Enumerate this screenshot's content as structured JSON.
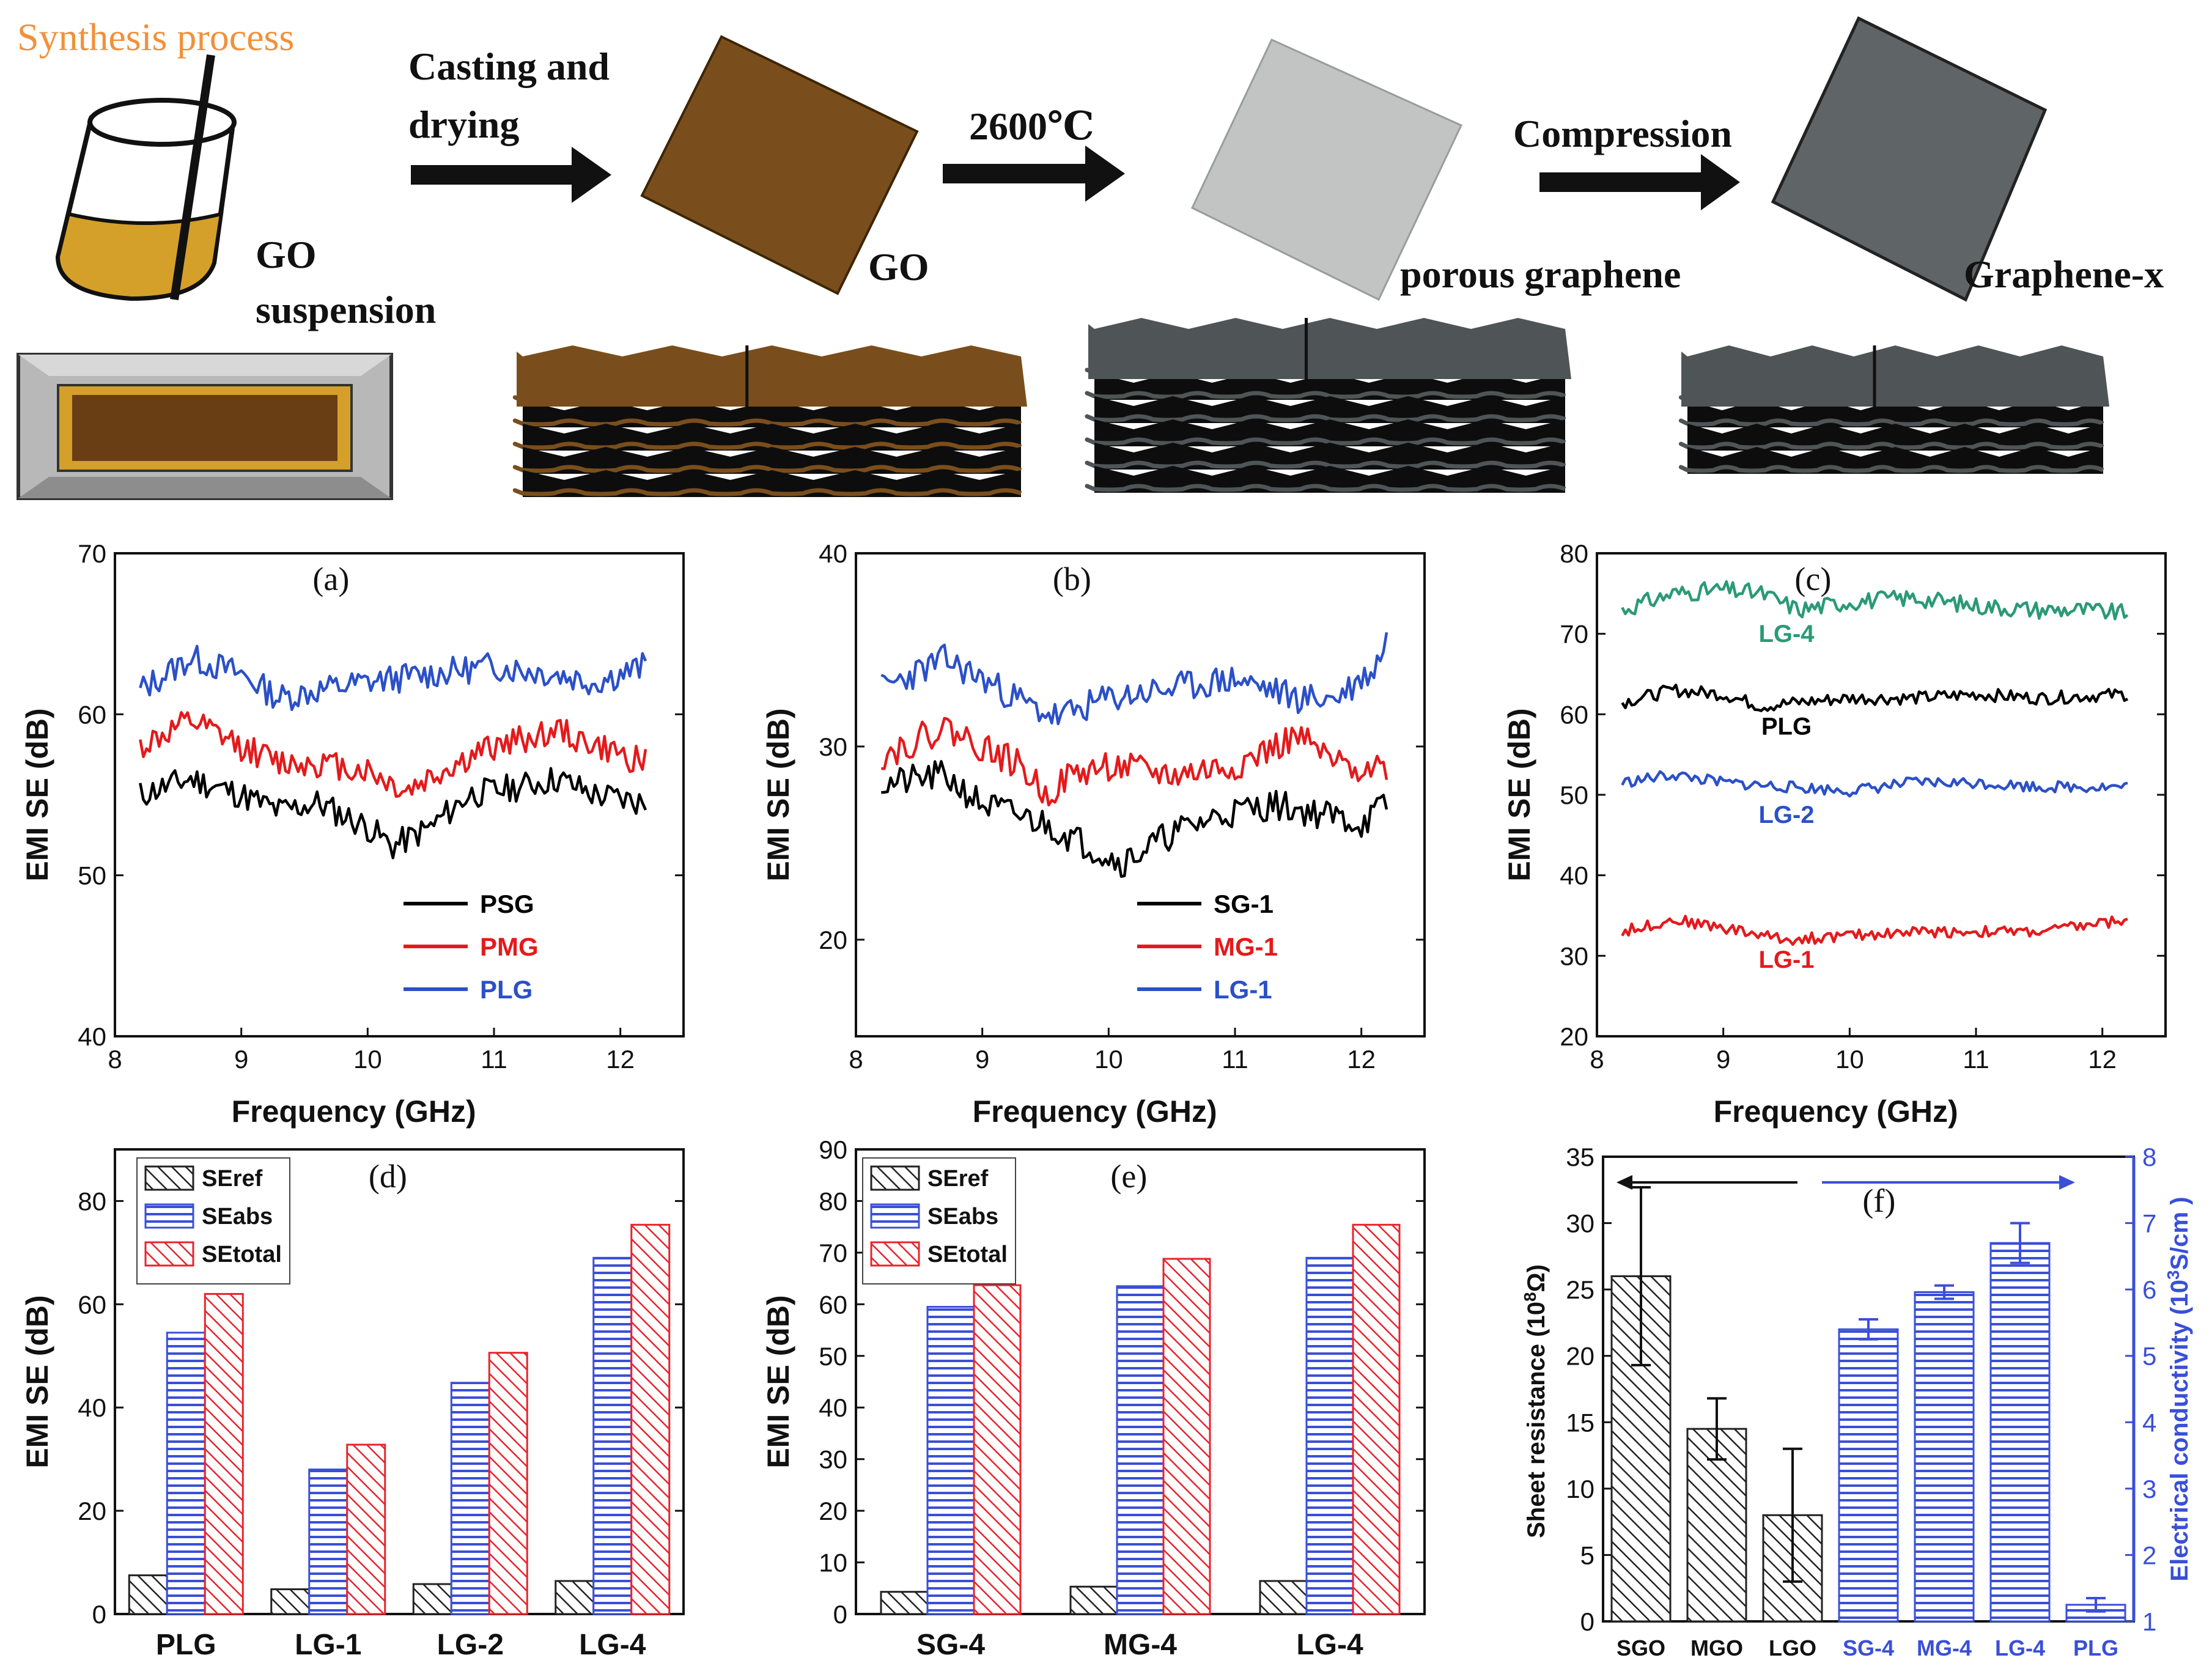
{
  "schematic": {
    "title": "Synthesis process",
    "colors": {
      "title": "#f0913a",
      "go": "#7a4e1c",
      "go_liquid": "#d4a02a",
      "porous": "#c2c4c4",
      "graphene_x": "#5f6466",
      "stack_dark": "#111111",
      "stack_top_gray": "#4f5456"
    },
    "steps": {
      "casting_line1": "Casting and",
      "casting_line2": "drying",
      "heat": "2600℃",
      "compression": "Compression"
    },
    "labels": {
      "go_suspension_line1": "GO",
      "go_suspension_line2": "suspension",
      "go": "GO",
      "porous": "porous graphene",
      "graphene_x": "Graphene-x"
    }
  },
  "chart_data": [
    {
      "panel": "(a)",
      "type": "line",
      "xlabel": "Frequency (GHz)",
      "ylabel": "EMI SE (dB)",
      "xlim": [
        8,
        12.5
      ],
      "ylim": [
        40,
        70
      ],
      "xticks": [
        8,
        9,
        10,
        11,
        12
      ],
      "yticks": [
        40,
        50,
        60,
        70
      ],
      "x_range": [
        8.2,
        12.2
      ],
      "points": 160,
      "series": [
        {
          "name": "PSG",
          "color": "#000000",
          "anchors": [
            [
              8.2,
              55
            ],
            [
              8.6,
              56
            ],
            [
              9.0,
              55
            ],
            [
              9.3,
              54
            ],
            [
              9.6,
              54.5
            ],
            [
              10.0,
              53
            ],
            [
              10.2,
              51.8
            ],
            [
              10.5,
              53
            ],
            [
              10.8,
              55
            ],
            [
              11.2,
              55.5
            ],
            [
              11.5,
              56
            ],
            [
              11.8,
              55
            ],
            [
              12.2,
              54.5
            ]
          ],
          "noise": 0.9,
          "seed": 11
        },
        {
          "name": "PMG",
          "color": "#e41a1c",
          "anchors": [
            [
              8.2,
              58
            ],
            [
              8.6,
              59.5
            ],
            [
              9.0,
              58
            ],
            [
              9.3,
              57
            ],
            [
              9.6,
              57
            ],
            [
              10.0,
              56.5
            ],
            [
              10.3,
              55.2
            ],
            [
              10.6,
              56.5
            ],
            [
              11.0,
              58
            ],
            [
              11.5,
              59
            ],
            [
              11.8,
              58
            ],
            [
              12.2,
              57
            ]
          ],
          "noise": 0.9,
          "seed": 12
        },
        {
          "name": "PLG",
          "color": "#2b50c8",
          "anchors": [
            [
              8.2,
              61.5
            ],
            [
              8.6,
              63.5
            ],
            [
              9.0,
              62.5
            ],
            [
              9.3,
              61
            ],
            [
              9.6,
              61.5
            ],
            [
              10.0,
              62
            ],
            [
              10.5,
              62.5
            ],
            [
              11.0,
              63
            ],
            [
              11.5,
              62.5
            ],
            [
              11.8,
              62
            ],
            [
              12.2,
              63
            ]
          ],
          "noise": 0.9,
          "seed": 13
        }
      ],
      "legend": [
        "PSG",
        "PMG",
        "PLG"
      ]
    },
    {
      "panel": "(b)",
      "type": "line",
      "xlabel": "Frequency (GHz)",
      "ylabel": "EMI SE (dB)",
      "xlim": [
        8,
        12.5
      ],
      "ylim": [
        15,
        40
      ],
      "xticks": [
        8,
        9,
        10,
        11,
        12
      ],
      "yticks": [
        20,
        30,
        40
      ],
      "x_range": [
        8.2,
        12.2
      ],
      "points": 160,
      "series": [
        {
          "name": "SG-1",
          "color": "#000000",
          "anchors": [
            [
              8.2,
              28
            ],
            [
              8.7,
              28.5
            ],
            [
              9.0,
              27
            ],
            [
              9.5,
              26
            ],
            [
              9.8,
              25
            ],
            [
              10.1,
              24
            ],
            [
              10.5,
              25.5
            ],
            [
              10.9,
              26.5
            ],
            [
              11.3,
              27
            ],
            [
              11.7,
              26.5
            ],
            [
              12.0,
              26
            ],
            [
              12.2,
              27
            ]
          ],
          "noise": 0.8,
          "seed": 21
        },
        {
          "name": "MG-1",
          "color": "#e41a1c",
          "anchors": [
            [
              8.2,
              29.5
            ],
            [
              8.7,
              31
            ],
            [
              9.0,
              30
            ],
            [
              9.3,
              29
            ],
            [
              9.5,
              27.5
            ],
            [
              9.7,
              28.5
            ],
            [
              10.0,
              29
            ],
            [
              10.5,
              28.5
            ],
            [
              11.0,
              29
            ],
            [
              11.5,
              30.5
            ],
            [
              11.8,
              29
            ],
            [
              12.2,
              29
            ]
          ],
          "noise": 0.8,
          "seed": 22
        },
        {
          "name": "LG-1",
          "color": "#2b50c8",
          "anchors": [
            [
              8.2,
              33
            ],
            [
              8.7,
              34.5
            ],
            [
              9.0,
              33.5
            ],
            [
              9.4,
              32
            ],
            [
              9.6,
              31.5
            ],
            [
              10.0,
              32.5
            ],
            [
              10.5,
              33
            ],
            [
              11.0,
              33.5
            ],
            [
              11.5,
              32.5
            ],
            [
              11.8,
              32.5
            ],
            [
              12.1,
              34
            ],
            [
              12.2,
              35.5
            ]
          ],
          "noise": 0.8,
          "seed": 23
        }
      ],
      "legend": [
        "SG-1",
        "MG-1",
        "LG-1"
      ]
    },
    {
      "panel": "(c)",
      "type": "line",
      "xlabel": "Frequency (GHz)",
      "ylabel": "EMI SE (dB)",
      "xlim": [
        8,
        12.5
      ],
      "ylim": [
        20,
        80
      ],
      "xticks": [
        8,
        9,
        10,
        11,
        12
      ],
      "yticks": [
        20,
        30,
        40,
        50,
        60,
        70,
        80
      ],
      "x_range": [
        8.2,
        12.2
      ],
      "points": 160,
      "series": [
        {
          "name": "LG-4",
          "color": "#2a9a76",
          "anchors": [
            [
              8.2,
              73
            ],
            [
              8.6,
              75
            ],
            [
              9.0,
              75.5
            ],
            [
              9.3,
              75
            ],
            [
              9.6,
              73
            ],
            [
              10.0,
              74
            ],
            [
              10.5,
              74.5
            ],
            [
              11.0,
              73.5
            ],
            [
              11.5,
              73
            ],
            [
              11.8,
              73
            ],
            [
              12.2,
              72.5
            ]
          ],
          "noise": 1.1,
          "seed": 31
        },
        {
          "name": "PLG",
          "color": "#000000",
          "anchors": [
            [
              8.2,
              61.5
            ],
            [
              8.6,
              63
            ],
            [
              9.0,
              62.5
            ],
            [
              9.3,
              61
            ],
            [
              9.6,
              61.5
            ],
            [
              10.0,
              62
            ],
            [
              10.5,
              62
            ],
            [
              11.0,
              62.5
            ],
            [
              11.5,
              62
            ],
            [
              12.2,
              62.5
            ]
          ],
          "noise": 0.8,
          "seed": 32
        },
        {
          "name": "LG-2",
          "color": "#2b50c8",
          "anchors": [
            [
              8.2,
              51.5
            ],
            [
              8.6,
              52.5
            ],
            [
              9.0,
              51.5
            ],
            [
              9.5,
              51
            ],
            [
              10.0,
              50.5
            ],
            [
              10.5,
              51.5
            ],
            [
              11.0,
              51.5
            ],
            [
              11.5,
              51
            ],
            [
              12.2,
              51
            ]
          ],
          "noise": 0.7,
          "seed": 33
        },
        {
          "name": "LG-1",
          "color": "#e41a1c",
          "anchors": [
            [
              8.2,
              33
            ],
            [
              8.6,
              34.5
            ],
            [
              9.0,
              33.5
            ],
            [
              9.5,
              32
            ],
            [
              10.0,
              32.5
            ],
            [
              10.5,
              33
            ],
            [
              11.0,
              33
            ],
            [
              11.5,
              33
            ],
            [
              12.2,
              34.5
            ]
          ],
          "noise": 0.7,
          "seed": 34
        }
      ],
      "series_labels": [
        {
          "name": "LG-4",
          "x": 9.5,
          "y": 69
        },
        {
          "name": "PLG",
          "x": 9.5,
          "y": 57.5
        },
        {
          "name": "LG-2",
          "x": 9.5,
          "y": 46.5
        },
        {
          "name": "LG-1",
          "x": 9.5,
          "y": 28.5
        }
      ]
    },
    {
      "panel": "(d)",
      "type": "bar",
      "ylabel": "EMI SE (dB)",
      "ylim": [
        0,
        90
      ],
      "yticks": [
        0,
        20,
        40,
        60,
        80
      ],
      "categories": [
        "PLG",
        "LG-1",
        "LG-2",
        "LG-4"
      ],
      "series": [
        {
          "name": "SEref",
          "pattern": "hatch",
          "values": [
            7.5,
            4.8,
            5.8,
            6.4
          ]
        },
        {
          "name": "SEabs",
          "pattern": "hline-blue",
          "values": [
            54.5,
            28,
            44.8,
            69
          ]
        },
        {
          "name": "SEtotal",
          "pattern": "hatch-red",
          "values": [
            62,
            32.8,
            50.6,
            75.4
          ]
        }
      ]
    },
    {
      "panel": "(e)",
      "type": "bar",
      "ylabel": "EMI SE (dB)",
      "ylim": [
        0,
        90
      ],
      "yticks": [
        0,
        10,
        20,
        30,
        40,
        50,
        60,
        70,
        80,
        90
      ],
      "categories": [
        "SG-4",
        "MG-4",
        "LG-4"
      ],
      "series": [
        {
          "name": "SEref",
          "pattern": "hatch",
          "values": [
            4.3,
            5.3,
            6.4
          ]
        },
        {
          "name": "SEabs",
          "pattern": "hline-blue",
          "values": [
            59.5,
            63.5,
            69
          ]
        },
        {
          "name": "SEtotal",
          "pattern": "hatch-red",
          "values": [
            63.7,
            68.8,
            75.4
          ]
        }
      ]
    },
    {
      "panel": "(f)",
      "type": "bar",
      "ylabel_left": "Sheet resistance (10",
      "ylabel_left_sup": "8",
      "ylabel_left_tail": "Ω)",
      "ylabel_right": "Electrical conductivity (10",
      "ylabel_right_sup": "3",
      "ylabel_right_tail": "S/cm )",
      "ylim_left": [
        0,
        35
      ],
      "yticks_left": [
        0,
        5,
        10,
        15,
        20,
        25,
        30,
        35
      ],
      "ylim_right": [
        1,
        8
      ],
      "yticks_right": [
        1,
        2,
        3,
        4,
        5,
        6,
        7,
        8
      ],
      "categories": [
        "SGO",
        "MGO",
        "LGO",
        "SG-4",
        "MG-4",
        "LG-4",
        "PLG"
      ],
      "left_bars": [
        {
          "category": "SGO",
          "value": 26,
          "err": 6.7
        },
        {
          "category": "MGO",
          "value": 14.5,
          "err": 2.3
        },
        {
          "category": "LGO",
          "value": 8,
          "err": 5
        }
      ],
      "right_bars": [
        {
          "category": "SG-4",
          "value": 5.4,
          "err": 0.15
        },
        {
          "category": "MG-4",
          "value": 5.96,
          "err": 0.1
        },
        {
          "category": "LG-4",
          "value": 6.7,
          "err": 0.3
        },
        {
          "category": "PLG",
          "value": 1.25,
          "err": 0.1
        }
      ]
    }
  ]
}
